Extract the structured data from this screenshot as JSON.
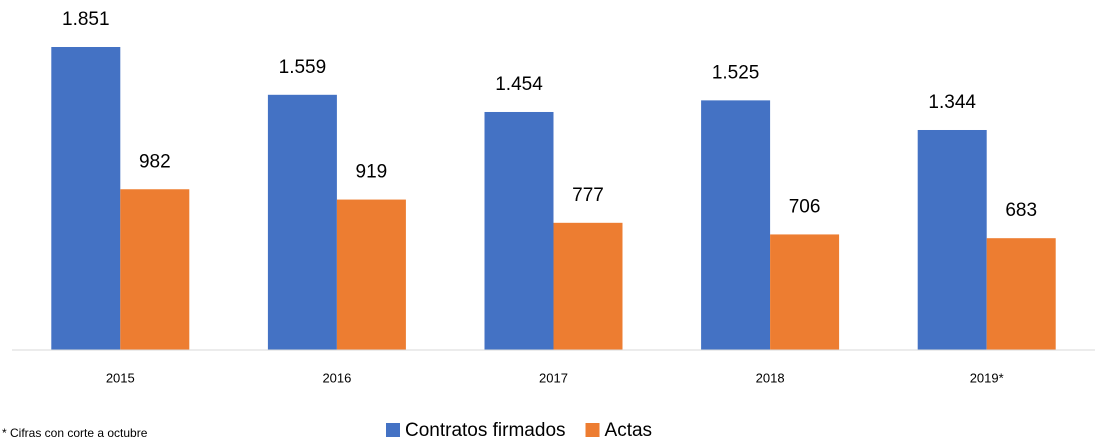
{
  "chart_data": {
    "type": "bar",
    "categories": [
      "2015",
      "2016",
      "2017",
      "2018",
      "2019*"
    ],
    "series": [
      {
        "name": "Contratos firmados",
        "color": "#4472c4",
        "values": [
          1851,
          1559,
          1454,
          1525,
          1344
        ],
        "value_labels": [
          "1.851",
          "1.559",
          "1.454",
          "1.525",
          "1.344"
        ]
      },
      {
        "name": "Actas",
        "color": "#ed7d31",
        "values": [
          982,
          919,
          777,
          706,
          683
        ]
      }
    ],
    "legend": "bottom",
    "footnote": "* Cifras con corte a octubre"
  }
}
